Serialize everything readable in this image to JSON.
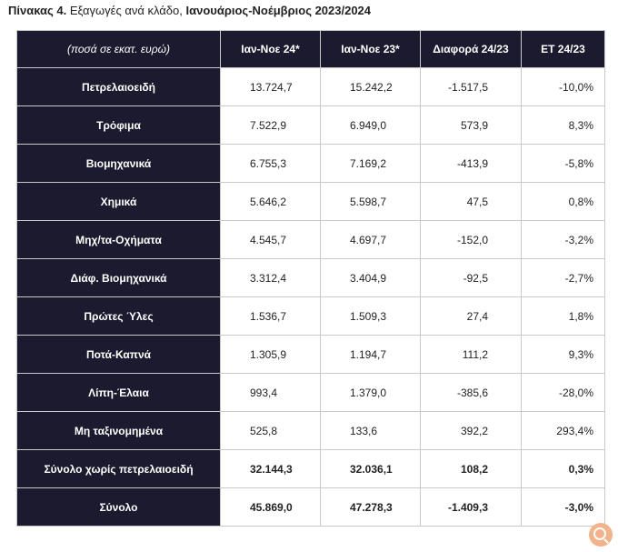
{
  "caption": {
    "label": "Πίνακας 4.",
    "text": " Εξαγωγές ανά κλάδο, ",
    "period": "Ιανουάριος-Νοέμβριος 2023/2024"
  },
  "table": {
    "headers": [
      "(ποσά σε εκατ. ευρώ)",
      "Ιαν-Νοε 24*",
      "Ιαν-Νοε 23*",
      "Διαφορά 24/23",
      "ΕΤ 24/23"
    ],
    "rows": [
      {
        "label": "Πετρελαιοειδή",
        "v1": "13.724,7",
        "v2": "15.242,2",
        "v3": "-1.517,5",
        "v4": "-10,0%"
      },
      {
        "label": "Τρόφιμα",
        "v1": "7.522,9",
        "v2": "6.949,0",
        "v3": "573,9",
        "v4": "8,3%"
      },
      {
        "label": "Βιομηχανικά",
        "v1": "6.755,3",
        "v2": "7.169,2",
        "v3": "-413,9",
        "v4": "-5,8%"
      },
      {
        "label": "Χημικά",
        "v1": "5.646,2",
        "v2": "5.598,7",
        "v3": "47,5",
        "v4": "0,8%"
      },
      {
        "label": "Μηχ/τα-Οχήματα",
        "v1": "4.545,7",
        "v2": "4.697,7",
        "v3": "-152,0",
        "v4": "-3,2%"
      },
      {
        "label": "Διάφ. Βιομηχανικά",
        "v1": "3.312,4",
        "v2": "3.404,9",
        "v3": "-92,5",
        "v4": "-2,7%"
      },
      {
        "label": "Πρώτες Ύλες",
        "v1": "1.536,7",
        "v2": "1.509,3",
        "v3": "27,4",
        "v4": "1,8%"
      },
      {
        "label": "Ποτά-Καπνά",
        "v1": "1.305,9",
        "v2": "1.194,7",
        "v3": "111,2",
        "v4": "9,3%"
      },
      {
        "label": "Λίπη-Έλαια",
        "v1": "993,4",
        "v2": "1.379,0",
        "v3": "-385,6",
        "v4": "-28,0%"
      },
      {
        "label": "Μη ταξινομημένα",
        "v1": "525,8",
        "v2": "133,6",
        "v3": "392,2",
        "v4": "293,4%"
      },
      {
        "label": "Σύνολο χωρίς πετρελαιοειδή",
        "v1": "32.144,3",
        "v2": "32.036,1",
        "v3": "108,2",
        "v4": "0,3%"
      },
      {
        "label": "Σύνολο",
        "v1": "45.869,0",
        "v2": "47.278,3",
        "v3": "-1.409,3",
        "v4": "-3,0%"
      }
    ]
  },
  "zoom_icon": {
    "icon": "zoom-in-icon",
    "color": "#f3b38a"
  }
}
